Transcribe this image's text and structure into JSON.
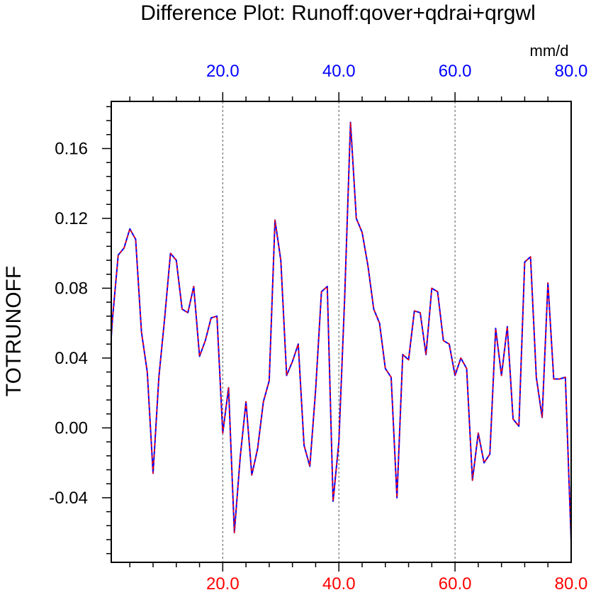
{
  "chart_data": {
    "type": "line",
    "title": "Difference Plot: Runoff:qover+qdrai+qrgwl",
    "ylabel": "TOTRUNOFF",
    "units_label": "mm/d",
    "xlim": [
      0.8,
      80.0
    ],
    "ylim": [
      -0.077,
      0.187
    ],
    "bottom_xticks": [
      "20.0",
      "40.0",
      "60.0",
      "80.0"
    ],
    "bottom_xtick_values": [
      20,
      40,
      60,
      80
    ],
    "top_xticks": [
      "20.0",
      "40.0",
      "60.0",
      "80.0"
    ],
    "top_xtick_values": [
      20,
      40,
      60,
      80
    ],
    "yticks": [
      "0.16",
      "0.12",
      "0.08",
      "0.04",
      "0.00",
      "-0.04"
    ],
    "ytick_values": [
      0.16,
      0.12,
      0.08,
      0.04,
      0.0,
      -0.04
    ],
    "vertical_gridlines_at": [
      20,
      40,
      60
    ],
    "colors": {
      "series_primary": "#0000ff",
      "series_dashed": "#ff0000",
      "bottom_tick_labels": "#ff0000",
      "top_tick_labels": "#0000ff",
      "axes": "#000000",
      "gridlines": "#555555"
    },
    "series": [
      {
        "style": "solid",
        "x": [
          0.8,
          1,
          2,
          3,
          4,
          5,
          6,
          7,
          8,
          9,
          10,
          11,
          12,
          13,
          14,
          15,
          16,
          17,
          18,
          19,
          20,
          21,
          22,
          23,
          24,
          25,
          26,
          27,
          28,
          29,
          30,
          31,
          32,
          33,
          34,
          35,
          36,
          37,
          38,
          39,
          40,
          41,
          42,
          43,
          44,
          45,
          46,
          47,
          48,
          49,
          50,
          51,
          52,
          53,
          54,
          55,
          56,
          57,
          58,
          59,
          60,
          61,
          62,
          63,
          64,
          65,
          66,
          67,
          68,
          69,
          70,
          71,
          72,
          73,
          74,
          75,
          76,
          77,
          78,
          79,
          80
        ],
        "values": [
          0.052,
          0.062,
          0.099,
          0.103,
          0.114,
          0.108,
          0.055,
          0.032,
          -0.026,
          0.029,
          0.063,
          0.1,
          0.096,
          0.068,
          0.066,
          0.081,
          0.041,
          0.05,
          0.063,
          0.064,
          -0.003,
          0.023,
          -0.06,
          -0.017,
          0.015,
          -0.027,
          -0.012,
          0.015,
          0.027,
          0.119,
          0.096,
          0.03,
          0.038,
          0.048,
          -0.01,
          -0.022,
          0.022,
          0.078,
          0.081,
          -0.042,
          -0.008,
          0.075,
          0.175,
          0.12,
          0.112,
          0.093,
          0.068,
          0.06,
          0.034,
          0.029,
          -0.04,
          0.042,
          0.039,
          0.067,
          0.066,
          0.042,
          0.08,
          0.078,
          0.05,
          0.048,
          0.03,
          0.04,
          0.034,
          -0.03,
          -0.003,
          -0.02,
          -0.015,
          0.057,
          0.03,
          0.058,
          0.005,
          0.001,
          0.095,
          0.098,
          0.029,
          0.006,
          0.083,
          0.028,
          0.028,
          0.029,
          -0.065
        ]
      },
      {
        "style": "dashed",
        "x": [
          0.8,
          1,
          2,
          3,
          4,
          5,
          6,
          7,
          8,
          9,
          10,
          11,
          12,
          13,
          14,
          15,
          16,
          17,
          18,
          19,
          20,
          21,
          22,
          23,
          24,
          25,
          26,
          27,
          28,
          29,
          30,
          31,
          32,
          33,
          34,
          35,
          36,
          37,
          38,
          39,
          40,
          41,
          42,
          43,
          44,
          45,
          46,
          47,
          48,
          49,
          50,
          51,
          52,
          53,
          54,
          55,
          56,
          57,
          58,
          59,
          60,
          61,
          62,
          63,
          64,
          65,
          66,
          67,
          68,
          69,
          70,
          71,
          72,
          73,
          74,
          75,
          76,
          77,
          78,
          79,
          80
        ],
        "values": [
          0.052,
          0.062,
          0.099,
          0.103,
          0.114,
          0.108,
          0.055,
          0.032,
          -0.026,
          0.029,
          0.063,
          0.1,
          0.096,
          0.068,
          0.066,
          0.081,
          0.041,
          0.05,
          0.063,
          0.064,
          -0.003,
          0.023,
          -0.06,
          -0.017,
          0.015,
          -0.027,
          -0.012,
          0.015,
          0.027,
          0.119,
          0.096,
          0.03,
          0.038,
          0.048,
          -0.01,
          -0.022,
          0.022,
          0.078,
          0.081,
          -0.042,
          -0.008,
          0.075,
          0.175,
          0.12,
          0.112,
          0.093,
          0.068,
          0.06,
          0.034,
          0.029,
          -0.04,
          0.042,
          0.039,
          0.067,
          0.066,
          0.042,
          0.08,
          0.078,
          0.05,
          0.048,
          0.03,
          0.04,
          0.034,
          -0.03,
          -0.003,
          -0.02,
          -0.015,
          0.057,
          0.03,
          0.058,
          0.005,
          0.001,
          0.095,
          0.098,
          0.029,
          0.006,
          0.083,
          0.028,
          0.028,
          0.029,
          -0.065
        ]
      }
    ],
    "grid": "vertical dashed only",
    "legend": "none"
  }
}
